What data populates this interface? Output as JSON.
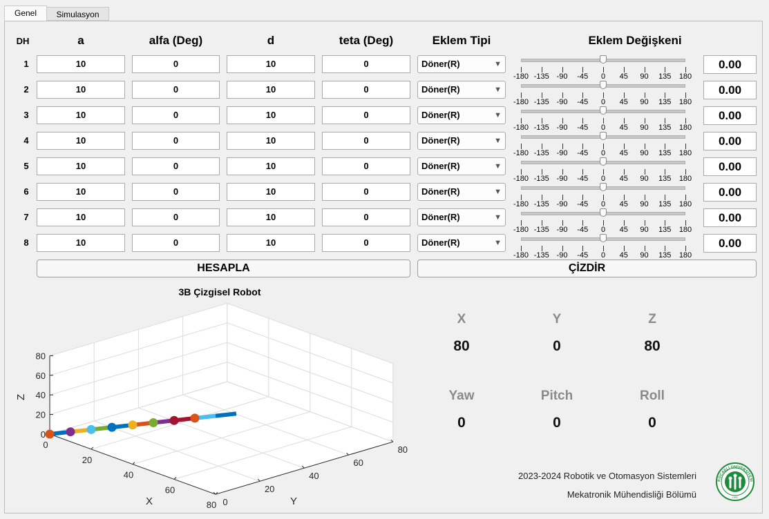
{
  "tabs": [
    {
      "label": "Genel",
      "active": true
    },
    {
      "label": "Simulasyon",
      "active": false
    }
  ],
  "table": {
    "row_header": "DH",
    "columns": [
      "a",
      "alfa (Deg)",
      "d",
      "teta (Deg)",
      "Eklem Tipi",
      "Eklem Değişkeni"
    ],
    "rows": [
      {
        "label": "1",
        "a": "10",
        "alfa": "0",
        "d": "10",
        "teta": "0",
        "joint_type": "Döner(R)",
        "slider_value": 0,
        "value": "0.00"
      },
      {
        "label": "2",
        "a": "10",
        "alfa": "0",
        "d": "10",
        "teta": "0",
        "joint_type": "Döner(R)",
        "slider_value": 0,
        "value": "0.00"
      },
      {
        "label": "3",
        "a": "10",
        "alfa": "0",
        "d": "10",
        "teta": "0",
        "joint_type": "Döner(R)",
        "slider_value": 0,
        "value": "0.00"
      },
      {
        "label": "4",
        "a": "10",
        "alfa": "0",
        "d": "10",
        "teta": "0",
        "joint_type": "Döner(R)",
        "slider_value": 0,
        "value": "0.00"
      },
      {
        "label": "5",
        "a": "10",
        "alfa": "0",
        "d": "10",
        "teta": "0",
        "joint_type": "Döner(R)",
        "slider_value": 0,
        "value": "0.00"
      },
      {
        "label": "6",
        "a": "10",
        "alfa": "0",
        "d": "10",
        "teta": "0",
        "joint_type": "Döner(R)",
        "slider_value": 0,
        "value": "0.00"
      },
      {
        "label": "7",
        "a": "10",
        "alfa": "0",
        "d": "10",
        "teta": "0",
        "joint_type": "Döner(R)",
        "slider_value": 0,
        "value": "0.00"
      },
      {
        "label": "8",
        "a": "10",
        "alfa": "0",
        "d": "10",
        "teta": "0",
        "joint_type": "Döner(R)",
        "slider_value": 0,
        "value": "0.00"
      }
    ],
    "slider_ticks": [
      "-180",
      "-135",
      "-90",
      "-45",
      "0",
      "45",
      "90",
      "135",
      "180"
    ],
    "slider_range": [
      -180,
      180
    ]
  },
  "buttons": {
    "calculate": "HESAPLA",
    "draw": "ÇİZDİR"
  },
  "plot": {
    "title": "3B Çizgisel Robot",
    "xlabel": "X",
    "ylabel": "Y",
    "zlabel": "Z",
    "x_ticks": [
      "0",
      "20",
      "40",
      "60",
      "80"
    ],
    "y_ticks": [
      "0",
      "20",
      "40",
      "60",
      "80"
    ],
    "z_ticks": [
      "0",
      "20",
      "40",
      "60",
      "80"
    ]
  },
  "chart_data": {
    "type": "line",
    "title": "3B Çizgisel Robot",
    "xlabel": "X",
    "ylabel": "Y",
    "zlabel": "Z",
    "xlim": [
      0,
      80
    ],
    "ylim": [
      0,
      80
    ],
    "zlim": [
      0,
      80
    ],
    "grid": true,
    "series": [
      {
        "x": [
          0,
          10,
          20,
          30,
          40,
          50,
          60,
          70,
          80
        ],
        "y": [
          0,
          0,
          0,
          0,
          0,
          0,
          0,
          0,
          0
        ],
        "z": [
          0,
          10,
          20,
          30,
          40,
          50,
          60,
          70,
          80
        ]
      }
    ],
    "joint_colors": [
      "#d95319",
      "#7e2f8e",
      "#4dbeee",
      "#0072bd",
      "#edb120",
      "#77ac30",
      "#a2142f",
      "#d95319"
    ],
    "link_colors": [
      "#0072bd",
      "#edb120",
      "#77ac30",
      "#0072bd",
      "#d95319",
      "#7e2f8e",
      "#a2142f",
      "#4dbeee",
      "#0072bd"
    ]
  },
  "results": {
    "x": {
      "label": "X",
      "value": "80"
    },
    "y": {
      "label": "Y",
      "value": "0"
    },
    "z": {
      "label": "Z",
      "value": "80"
    },
    "yaw": {
      "label": "Yaw",
      "value": "0"
    },
    "pitch": {
      "label": "Pitch",
      "value": "0"
    },
    "roll": {
      "label": "Roll",
      "value": "0"
    }
  },
  "footer": {
    "line1": "2023-2024 Robotik ve Otomasyon Sistemleri",
    "line2": "Mekatronik Mühendisliği Bölümü",
    "logo_text": "KOCAELİ ÜNİVERSİTESİ",
    "logo_year": "1992"
  },
  "colors": {
    "logo_green": "#1e8a3c"
  }
}
